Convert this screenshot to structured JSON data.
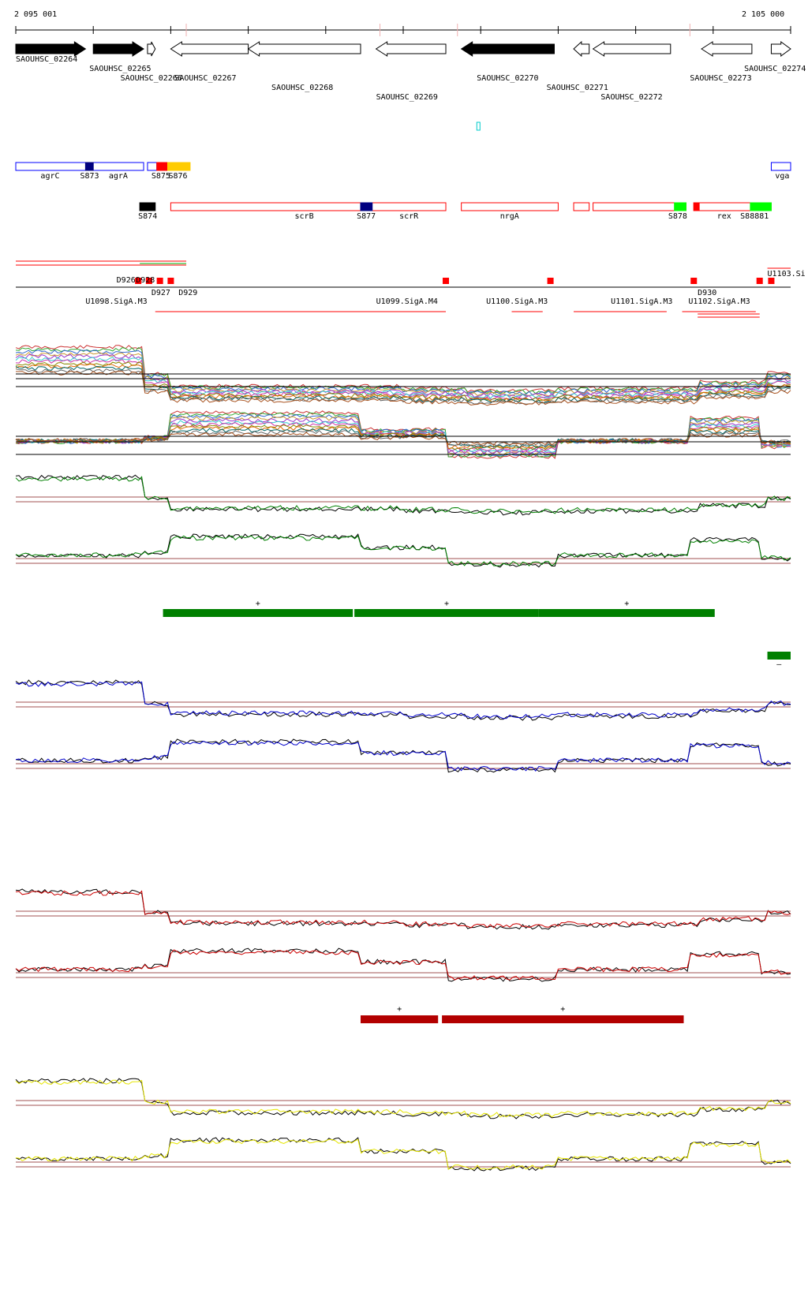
{
  "ruler": {
    "start_label": "2 095 001",
    "end_label": "2 105 000",
    "start_bp": 2095001,
    "end_bp": 2105000
  },
  "colors": {
    "gene_filled": "#000000",
    "gene_open": "#000000",
    "feature_red": "#ff0000",
    "feature_blue": "#0000ff",
    "feature_navy": "#000080",
    "feature_green": "#00ff00",
    "feature_yellow": "#ffcc00",
    "track_green": "#008000",
    "track_blue": "#0000cc",
    "track_red": "#cc0000",
    "track_yellow": "#e6e600",
    "threshold": "#a05050",
    "segment_green": "#008000",
    "segment_red": "#b30000",
    "cyan_mark": "#00cccc"
  },
  "genes": [
    {
      "label": "SAOUHSC_02264",
      "start": 0.0,
      "end": 0.09,
      "strand": "+",
      "filled": true,
      "label_pos": 0.0,
      "label_row": 0
    },
    {
      "label": "SAOUHSC_02265",
      "start": 0.1,
      "end": 0.165,
      "strand": "+",
      "filled": true,
      "label_pos": 0.095,
      "label_row": 1
    },
    {
      "label": "SAOUHSC_02266",
      "start": 0.17,
      "end": 0.18,
      "strand": "+",
      "filled": false,
      "label_pos": 0.135,
      "label_row": 2
    },
    {
      "label": "SAOUHSC_02267",
      "start": 0.2,
      "end": 0.3,
      "strand": "-",
      "filled": false,
      "label_pos": 0.205,
      "label_row": 2
    },
    {
      "label": "SAOUHSC_02268",
      "start": 0.3,
      "end": 0.445,
      "strand": "-",
      "filled": false,
      "label_pos": 0.33,
      "label_row": 3
    },
    {
      "label": "SAOUHSC_02269",
      "start": 0.465,
      "end": 0.555,
      "strand": "-",
      "filled": false,
      "label_pos": 0.465,
      "label_row": 4
    },
    {
      "label": "SAOUHSC_02270",
      "start": 0.575,
      "end": 0.695,
      "strand": "-",
      "filled": true,
      "label_pos": 0.595,
      "label_row": 2
    },
    {
      "label": "SAOUHSC_02271",
      "start": 0.72,
      "end": 0.74,
      "strand": "-",
      "filled": false,
      "label_pos": 0.685,
      "label_row": 3
    },
    {
      "label": "SAOUHSC_02272",
      "start": 0.745,
      "end": 0.845,
      "strand": "-",
      "filled": false,
      "label_pos": 0.755,
      "label_row": 4
    },
    {
      "label": "SAOUHSC_02273",
      "start": 0.885,
      "end": 0.95,
      "strand": "-",
      "filled": false,
      "label_pos": 0.87,
      "label_row": 2
    },
    {
      "label": "SAOUHSC_02274",
      "start": 0.975,
      "end": 1.0,
      "strand": "+",
      "filled": false,
      "label_pos": 0.94,
      "label_row": 1
    }
  ],
  "features_row1": [
    {
      "label": "",
      "start": 0.0,
      "end": 0.165,
      "color": "#0000ff",
      "fill": false
    },
    {
      "label": "",
      "start": 0.09,
      "end": 0.1,
      "color": "#000080",
      "fill": true
    },
    {
      "label": "",
      "start": 0.17,
      "end": 0.182,
      "color": "#0000ff",
      "fill": false
    },
    {
      "label": "",
      "start": 0.182,
      "end": 0.196,
      "color": "#ff0000",
      "fill": true
    },
    {
      "label": "",
      "start": 0.196,
      "end": 0.225,
      "color": "#ffcc00",
      "fill": true
    },
    {
      "label": "",
      "start": 0.975,
      "end": 1.0,
      "color": "#0000ff",
      "fill": false
    }
  ],
  "features_row1_labels": [
    {
      "text": "agrC",
      "pos": 0.032
    },
    {
      "text": "S873",
      "pos": 0.083
    },
    {
      "text": "agrA",
      "pos": 0.12
    },
    {
      "text": "S875",
      "pos": 0.175
    },
    {
      "text": "S876",
      "pos": 0.197
    },
    {
      "text": "vga",
      "pos": 0.98
    }
  ],
  "features_row2": [
    {
      "start": 0.16,
      "end": 0.18,
      "color": "#000000",
      "fill": true
    },
    {
      "start": 0.2,
      "end": 0.555,
      "color": "#ff0000",
      "fill": false
    },
    {
      "start": 0.445,
      "end": 0.46,
      "color": "#000080",
      "fill": true
    },
    {
      "start": 0.575,
      "end": 0.7,
      "color": "#ff0000",
      "fill": false
    },
    {
      "start": 0.72,
      "end": 0.74,
      "color": "#ff0000",
      "fill": false
    },
    {
      "start": 0.745,
      "end": 0.865,
      "color": "#ff0000",
      "fill": false
    },
    {
      "start": 0.85,
      "end": 0.865,
      "color": "#00ff00",
      "fill": true
    },
    {
      "start": 0.875,
      "end": 0.975,
      "color": "#ff0000",
      "fill": false
    },
    {
      "start": 0.875,
      "end": 0.882,
      "color": "#ff0000",
      "fill": true
    },
    {
      "start": 0.948,
      "end": 0.975,
      "color": "#00ff00",
      "fill": true
    }
  ],
  "features_row2_labels": [
    {
      "text": "S874",
      "pos": 0.158
    },
    {
      "text": "scrB",
      "pos": 0.36
    },
    {
      "text": "S877",
      "pos": 0.44
    },
    {
      "text": "scrR",
      "pos": 0.495
    },
    {
      "text": "nrgA",
      "pos": 0.625
    },
    {
      "text": "S878",
      "pos": 0.842
    },
    {
      "text": "rex",
      "pos": 0.905
    },
    {
      "text": "S88881",
      "pos": 0.935
    }
  ],
  "cyan_mark_pos": 0.595,
  "operon_labels": [
    {
      "text": "D926",
      "pos": 0.13,
      "row": 0
    },
    {
      "text": "D928",
      "pos": 0.155,
      "row": 0
    },
    {
      "text": "D927",
      "pos": 0.175,
      "row": 1
    },
    {
      "text": "D929",
      "pos": 0.21,
      "row": 1
    },
    {
      "text": "U1098.SigA.M3",
      "pos": 0.09,
      "row": 2
    },
    {
      "text": "U1099.SigA.M4",
      "pos": 0.465,
      "row": 2
    },
    {
      "text": "U1100.SigA.M3",
      "pos": 0.607,
      "row": 2
    },
    {
      "text": "U1101.SigA.M3",
      "pos": 0.768,
      "row": 2
    },
    {
      "text": "D930",
      "pos": 0.88,
      "row": 1
    },
    {
      "text": "U1102.SigA.M3",
      "pos": 0.868,
      "row": 2
    },
    {
      "text": "U1103.Si",
      "pos": 0.97,
      "row": -1
    }
  ],
  "segments_green": [
    {
      "start": 0.19,
      "end": 0.435,
      "strand": "+"
    },
    {
      "start": 0.437,
      "end": 0.675,
      "strand": "+"
    },
    {
      "start": 0.675,
      "end": 0.902,
      "strand": "+"
    },
    {
      "start": 0.97,
      "end": 1.0,
      "strand": "–"
    }
  ],
  "segments_red": [
    {
      "start": 0.445,
      "end": 0.545,
      "strand": "+"
    },
    {
      "start": 0.55,
      "end": 0.862,
      "strand": "+"
    }
  ]
}
